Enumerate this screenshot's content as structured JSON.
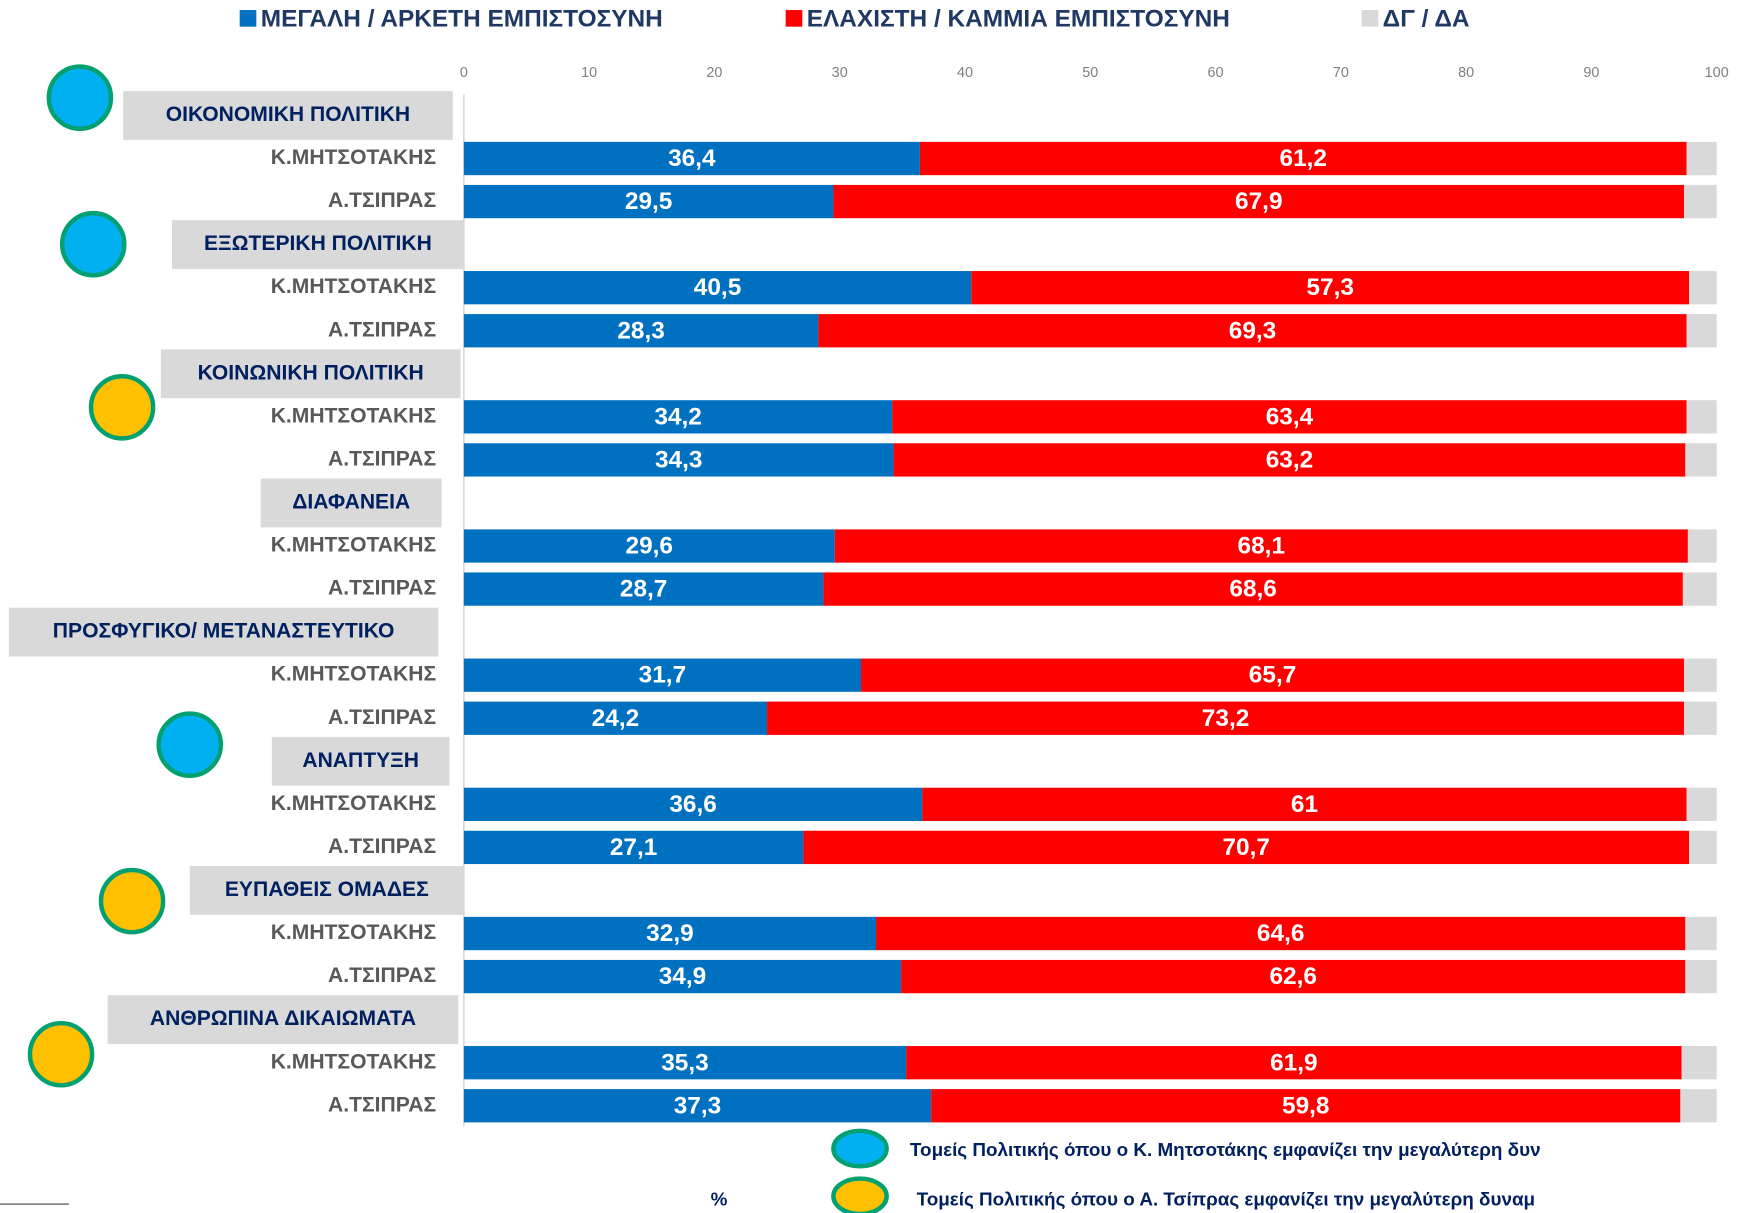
{
  "chart_data": {
    "type": "stacked-barh",
    "groups": [
      "ΟΙΚΟΝΟΜΙΚΗ ΠΟΛΙΤΙΚΗ",
      "ΕΞΩΤΕΡΙΚΗ ΠΟΛΙΤΙΚΗ",
      "ΚΟΙΝΩΝΙΚΗ ΠΟΛΙΤΙΚΗ",
      "ΔΙΑΦΑΝΕΙΑ",
      "ΠΡΟΣΦΥΓΙΚΟ/ ΜΕΤΑΝΑΣΤΕΥΤΙΚΟ",
      "ΑΝΑΠΤΥΞΗ",
      "ΕΥΠΑΘΕΙΣ ΟΜΑΔΕΣ",
      "ΑΝΘΡΩΠΙΝΑ ΔΙΚΑΙΩΜΑΤΑ"
    ],
    "categories": [
      "Κ.ΜΗΤΣΟΤΑΚΗΣ",
      "Α.ΤΣΙΠΡΑΣ",
      "Κ.ΜΗΤΣΟΤΑΚΗΣ",
      "Α.ΤΣΙΠΡΑΣ",
      "Κ.ΜΗΤΣΟΤΑΚΗΣ",
      "Α.ΤΣΙΠΡΑΣ",
      "Κ.ΜΗΤΣΟΤΑΚΗΣ",
      "Α.ΤΣΙΠΡΑΣ",
      "Κ.ΜΗΤΣΟΤΑΚΗΣ",
      "Α.ΤΣΙΠΡΑΣ",
      "Κ.ΜΗΤΣΟΤΑΚΗΣ",
      "Α.ΤΣΙΠΡΑΣ",
      "Κ.ΜΗΤΣΟΤΑΚΗΣ",
      "Α.ΤΣΙΠΡΑΣ",
      "Κ.ΜΗΤΣΟΤΑΚΗΣ",
      "Α.ΤΣΙΠΡΑΣ"
    ],
    "series": [
      {
        "name": "ΜΕΓΑΛΗ / ΑΡΚΕΤΗ ΕΜΠΙΣΤΟΣΥΝΗ",
        "color": "#0070c0",
        "values": [
          36.4,
          29.5,
          40.5,
          28.3,
          34.2,
          34.3,
          29.6,
          28.7,
          31.7,
          24.2,
          36.6,
          27.1,
          32.9,
          34.9,
          35.3,
          37.3
        ],
        "value_labels": [
          "36,4",
          "29,5",
          "40,5",
          "28,3",
          "34,2",
          "34,3",
          "29,6",
          "28,7",
          "31,7",
          "24,2",
          "36,6",
          "27,1",
          "32,9",
          "34,9",
          "35,3",
          "37,3"
        ]
      },
      {
        "name": "ΕΛΑΧΙΣΤΗ / ΚΑΜΜΙΑ ΕΜΠΙΣΤΟΣΥΝΗ",
        "color": "#ff0000",
        "values": [
          61.2,
          67.9,
          57.3,
          69.3,
          63.4,
          63.2,
          68.1,
          68.6,
          65.7,
          73.2,
          61,
          70.7,
          64.6,
          62.6,
          61.9,
          59.8
        ],
        "value_labels": [
          "61,2",
          "67,9",
          "57,3",
          "69,3",
          "63,4",
          "63,2",
          "68,1",
          "68,6",
          "65,7",
          "73,2",
          "61",
          "70,7",
          "64,6",
          "62,6",
          "61,9",
          "59,8"
        ]
      },
      {
        "name": "ΔΓ / ΔΑ",
        "color": "#d9d9d9",
        "values": [
          2.4,
          2.6,
          2.2,
          2.4,
          2.4,
          2.5,
          2.3,
          2.7,
          2.6,
          2.6,
          2.4,
          2.2,
          2.5,
          2.5,
          2.8,
          2.9
        ]
      }
    ],
    "xlim": [
      0,
      100
    ],
    "xticks": [
      0,
      10,
      20,
      30,
      40,
      50,
      60,
      70,
      80,
      90,
      100
    ],
    "xlabel": "%",
    "notes": [
      "Τομείς Πολιτικής όπου ο Κ. Μητσοτάκης εμφανίζει την μεγαλύτερη δυν",
      "Τομείς Πολιτικής όπου ο Α. Τσίπρας εμφανίζει την μεγαλύτερη δυναμ"
    ]
  }
}
